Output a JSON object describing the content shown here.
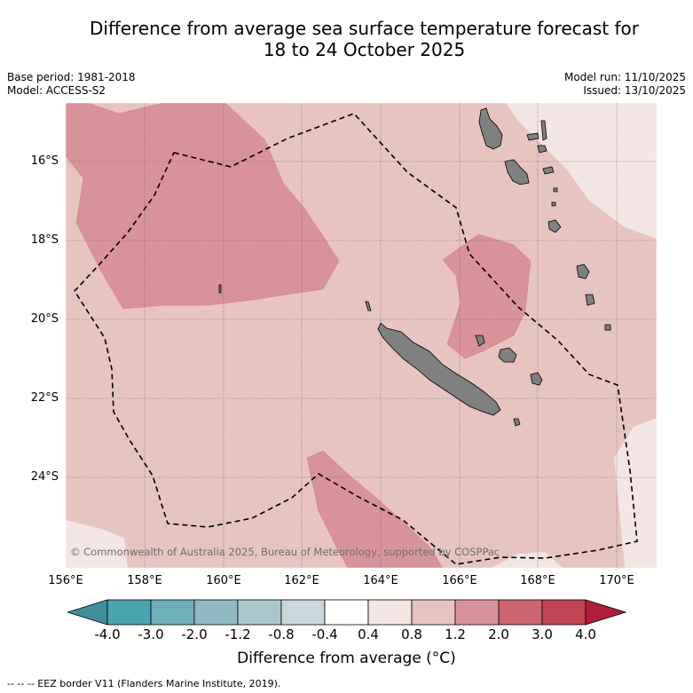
{
  "title": {
    "line1": "Difference from average sea surface temperature forecast for",
    "line2": "18 to 24 October 2025"
  },
  "meta": {
    "base_period": "Base period: 1981-2018",
    "model": "Model: ACCESS-S2",
    "model_run": "Model run: 11/10/2025",
    "issued": "Issued: 13/10/2025"
  },
  "map": {
    "lat_labels": [
      "16°S",
      "18°S",
      "20°S",
      "22°S",
      "24°S"
    ],
    "lon_labels": [
      "156°E",
      "158°E",
      "160°E",
      "162°E",
      "164°E",
      "166°E",
      "168°E",
      "170°E"
    ],
    "credit": "© Commonwealth of Australia 2025, Bureau of Meteorology, supported by COSPPac",
    "land_color": "#808080",
    "ocean_base_color": "#e8c4c0"
  },
  "colorbar": {
    "ticks": [
      "-4.0",
      "-3.0",
      "-2.0",
      "-1.2",
      "-0.8",
      "-0.4",
      "0.4",
      "0.8",
      "1.2",
      "2.0",
      "3.0",
      "4.0"
    ],
    "colors": [
      "#3f8e9a",
      "#4aa3b1",
      "#6faebb",
      "#90b9c4",
      "#a9c7cc",
      "#c9d8da",
      "#ffffff",
      "#f4e6e4",
      "#e8c4c0",
      "#d8939a",
      "#cb6670",
      "#c04452",
      "#b01e3c"
    ],
    "label": "Difference from average (°C)"
  },
  "footnote": "--  --  -- EEZ border V11 (Flanders Marine Institute, 2019)."
}
